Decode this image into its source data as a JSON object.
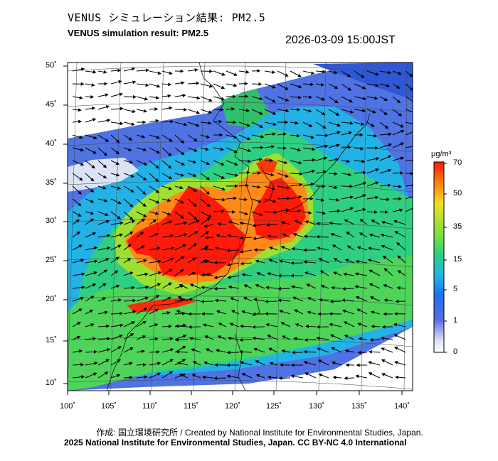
{
  "header": {
    "title_jp": "VENUS シミュレーション結果: PM2.5",
    "title_en": "VENUS simulation result: PM2.5",
    "timestamp": "2026-03-09 15:00JST"
  },
  "map": {
    "lon_ticks": [
      "100˚",
      "105˚",
      "110˚",
      "115˚",
      "120˚",
      "125˚",
      "130˚",
      "135˚",
      "140˚"
    ],
    "lat_ticks": [
      "50˚",
      "45˚",
      "40˚",
      "35˚",
      "30˚",
      "25˚",
      "20˚",
      "15˚",
      "10˚"
    ]
  },
  "colorbar": {
    "unit": "μg/m³",
    "ticks": [
      "70",
      "50",
      "35",
      "15",
      "5",
      "1",
      "0"
    ],
    "colors": [
      "#ffffff",
      "#5a6ee0",
      "#1fb4e8",
      "#2fd080",
      "#7ee040",
      "#f0e020",
      "#ff6010",
      "#ff1a0a"
    ]
  },
  "footer": {
    "credit": "作成: 国立環境研究所 / Created by National Institute for Environmental Studies, Japan.",
    "copyright": "2025 National Institute for Environmental Studies, Japan. CC BY-NC 4.0 International"
  }
}
